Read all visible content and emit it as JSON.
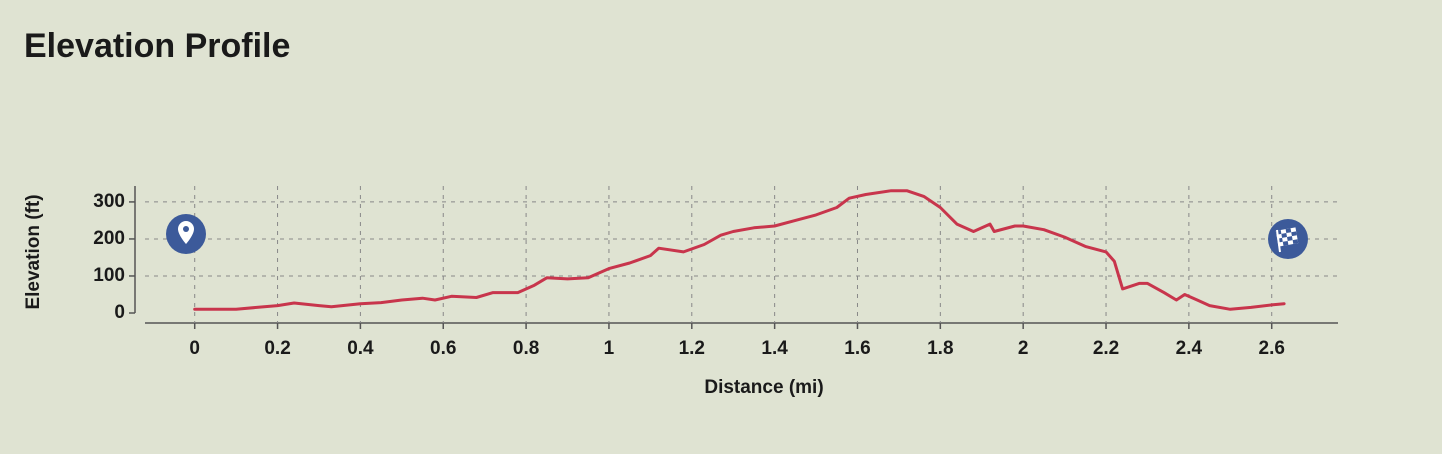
{
  "chart_data": {
    "type": "line",
    "title": "Elevation Profile",
    "x_label": "Distance (mi)",
    "y_label": "Elevation (ft)",
    "x": [
      0,
      0.1,
      0.15,
      0.2,
      0.24,
      0.3,
      0.33,
      0.4,
      0.45,
      0.5,
      0.55,
      0.58,
      0.62,
      0.68,
      0.72,
      0.78,
      0.82,
      0.85,
      0.9,
      0.95,
      1.0,
      1.05,
      1.1,
      1.12,
      1.18,
      1.23,
      1.27,
      1.3,
      1.35,
      1.4,
      1.45,
      1.5,
      1.55,
      1.58,
      1.62,
      1.68,
      1.72,
      1.76,
      1.8,
      1.84,
      1.88,
      1.92,
      1.93,
      1.98,
      2.0,
      2.05,
      2.1,
      2.15,
      2.2,
      2.22,
      2.24,
      2.28,
      2.3,
      2.34,
      2.37,
      2.39,
      2.42,
      2.45,
      2.5,
      2.55,
      2.6,
      2.63
    ],
    "values": [
      10,
      10,
      15,
      20,
      27,
      20,
      17,
      25,
      28,
      35,
      40,
      35,
      45,
      42,
      55,
      55,
      75,
      95,
      92,
      95,
      120,
      135,
      155,
      175,
      165,
      185,
      210,
      220,
      230,
      235,
      250,
      265,
      285,
      310,
      320,
      330,
      330,
      315,
      285,
      240,
      220,
      240,
      220,
      235,
      235,
      225,
      205,
      180,
      165,
      140,
      65,
      80,
      80,
      55,
      35,
      50,
      35,
      20,
      10,
      15,
      22,
      25
    ],
    "color": "#c8354c",
    "xlim": [
      -0.12,
      2.76
    ],
    "ylim": [
      -27,
      343
    ],
    "xticks": [
      0,
      0.2,
      0.4,
      0.6,
      0.8,
      1,
      1.2,
      1.4,
      1.6,
      1.8,
      2,
      2.2,
      2.4,
      2.6
    ],
    "yticks": [
      0,
      100,
      200,
      300
    ],
    "grid": true
  }
}
